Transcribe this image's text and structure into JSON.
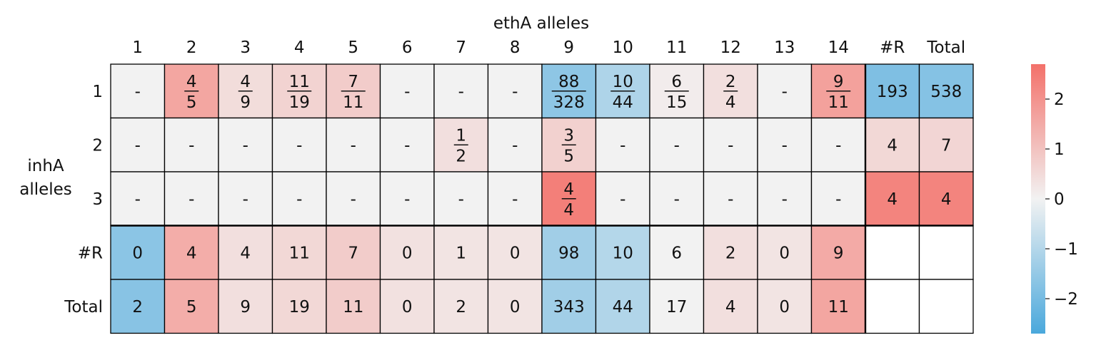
{
  "chart_data": {
    "type": "heatmap",
    "title": "ethA alleles",
    "ylabel": [
      "inhA",
      "alleles"
    ],
    "col_labels": [
      "1",
      "2",
      "3",
      "4",
      "5",
      "6",
      "7",
      "8",
      "9",
      "10",
      "11",
      "12",
      "13",
      "14",
      "#R",
      "Total"
    ],
    "row_labels": [
      "1",
      "2",
      "3",
      "#R",
      "Total"
    ],
    "cells": [
      [
        "-",
        "4/5",
        "4/9",
        "11/19",
        "7/11",
        "-",
        "-",
        "-",
        "88/328",
        "10/44",
        "6/15",
        "2/4",
        "-",
        "9/11",
        "193",
        "538"
      ],
      [
        "-",
        "-",
        "-",
        "-",
        "-",
        "-",
        "1/2",
        "-",
        "3/5",
        "-",
        "-",
        "-",
        "-",
        "-",
        "4",
        "7"
      ],
      [
        "-",
        "-",
        "-",
        "-",
        "-",
        "-",
        "-",
        "-",
        "4/4",
        "-",
        "-",
        "-",
        "-",
        "-",
        "4",
        "4"
      ],
      [
        "0",
        "4",
        "4",
        "11",
        "7",
        "0",
        "1",
        "0",
        "98",
        "10",
        "6",
        "2",
        "0",
        "9",
        "",
        ""
      ],
      [
        "2",
        "5",
        "9",
        "19",
        "11",
        "0",
        "2",
        "0",
        "343",
        "44",
        "17",
        "4",
        "0",
        "11",
        "",
        ""
      ]
    ],
    "scores": [
      [
        null,
        1.6,
        0.45,
        0.65,
        0.8,
        null,
        null,
        null,
        -1.6,
        -1.1,
        0.12,
        0.4,
        null,
        1.7,
        -1.85,
        -1.75
      ],
      [
        null,
        null,
        null,
        null,
        null,
        null,
        0.4,
        null,
        0.7,
        null,
        null,
        null,
        null,
        null,
        0.55,
        0.6
      ],
      [
        null,
        null,
        null,
        null,
        null,
        null,
        null,
        null,
        2.4,
        null,
        null,
        null,
        null,
        null,
        2.3,
        2.3
      ],
      [
        -1.65,
        1.45,
        0.4,
        0.55,
        0.8,
        0.35,
        0.3,
        0.3,
        -1.3,
        -1.0,
        null,
        0.4,
        0.3,
        1.5,
        null,
        null
      ],
      [
        -1.7,
        1.45,
        0.4,
        0.55,
        0.8,
        0.35,
        0.3,
        0.3,
        -1.3,
        -1.05,
        null,
        0.4,
        0.3,
        1.6,
        null,
        null
      ]
    ],
    "colorbar": {
      "range": [
        -2.7,
        2.7
      ],
      "ticks": [
        -2,
        -1,
        0,
        1,
        2
      ],
      "tick_labels": [
        "−2",
        "−1",
        "0",
        "1",
        "2"
      ],
      "negative_color": "#4aa8dc",
      "neutral_color": "#f2f2f2",
      "positive_color": "#f3716a"
    },
    "missing_color": "#f2f2f2",
    "empty_color": "#ffffff",
    "grid_color": "#000000"
  }
}
